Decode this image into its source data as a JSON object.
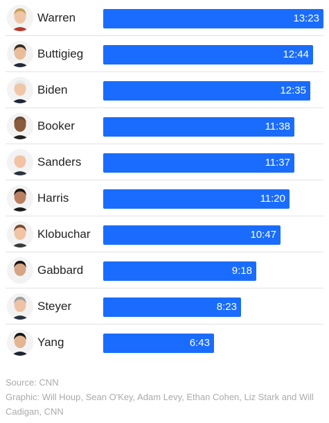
{
  "chart_data": {
    "type": "bar",
    "orientation": "horizontal",
    "categories": [
      "Warren",
      "Buttigieg",
      "Biden",
      "Booker",
      "Sanders",
      "Harris",
      "Klobuchar",
      "Gabbard",
      "Steyer",
      "Yang"
    ],
    "labels": [
      "13:23",
      "12:44",
      "12:35",
      "11:38",
      "11:37",
      "11:20",
      "10:47",
      "9:18",
      "8:23",
      "6:43"
    ],
    "values": [
      13.383,
      12.733,
      12.583,
      11.633,
      11.617,
      11.333,
      10.783,
      9.3,
      8.383,
      6.717
    ],
    "value_unit": "minutes (m:ss)",
    "xlim": [
      0,
      13.383
    ],
    "grid": false,
    "legend": "none"
  },
  "colors": {
    "bar": "#1a6cff",
    "bar_label": "#ffffff",
    "name_text": "#222222",
    "divider": "#e3e3e3",
    "footer_text": "#aaaaaa"
  },
  "avatars": [
    {
      "icon": "warren-portrait-icon",
      "hair": "#c9a05a",
      "skin": "#f0c5a6",
      "shirt": "#b8392c"
    },
    {
      "icon": "buttigieg-portrait-icon",
      "hair": "#3b2a20",
      "skin": "#e9bc9a",
      "shirt": "#23283a"
    },
    {
      "icon": "biden-portrait-icon",
      "hair": "#e8e8e8",
      "skin": "#efc7a8",
      "shirt": "#1f2638"
    },
    {
      "icon": "booker-portrait-icon",
      "hair": "#6e4a33",
      "skin": "#8a5a3c",
      "shirt": "#222222"
    },
    {
      "icon": "sanders-portrait-icon",
      "hair": "#f1f1f1",
      "skin": "#f2c2a4",
      "shirt": "#2b3140"
    },
    {
      "icon": "harris-portrait-icon",
      "hair": "#1f1510",
      "skin": "#b98062",
      "shirt": "#1b1b1b"
    },
    {
      "icon": "klobuchar-portrait-icon",
      "hair": "#7a4a2c",
      "skin": "#f0c4a4",
      "shirt": "#3a3a3a"
    },
    {
      "icon": "gabbard-portrait-icon",
      "hair": "#1a1210",
      "skin": "#d6a487",
      "shirt": "#f2f2f2"
    },
    {
      "icon": "steyer-portrait-icon",
      "hair": "#9e9e9e",
      "skin": "#eec3a5",
      "shirt": "#2a3242"
    },
    {
      "icon": "yang-portrait-icon",
      "hair": "#151515",
      "skin": "#e3b592",
      "shirt": "#1d2433"
    }
  ],
  "footer": {
    "source": "Source: CNN",
    "credit": "Graphic: Will Houp, Sean O'Key, Adam Levy, Ethan Cohen, Liz Stark and Will Cadigan, CNN"
  }
}
